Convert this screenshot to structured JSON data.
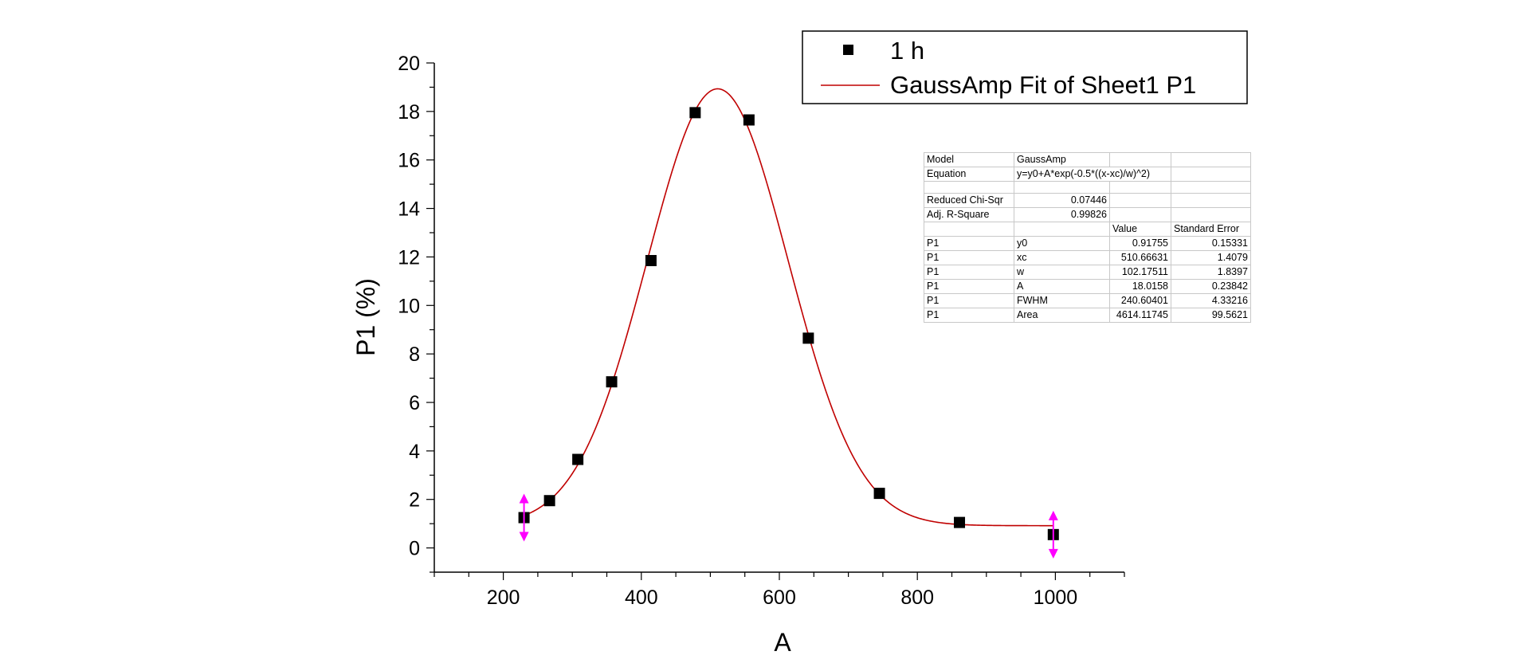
{
  "chart_data": {
    "type": "scatter",
    "xlabel": "A",
    "ylabel": "P1 (%)",
    "xlim": [
      100,
      1100
    ],
    "ylim": [
      -1,
      20
    ],
    "xticks": [
      200,
      400,
      600,
      800,
      1000
    ],
    "yticks": [
      0,
      2,
      4,
      6,
      8,
      10,
      12,
      14,
      16,
      18,
      20
    ],
    "grid": false,
    "legend_position": "top-right",
    "series": [
      {
        "name": "1 h",
        "kind": "scatter",
        "marker": "square",
        "color": "#000000",
        "x": [
          230,
          267,
          308,
          357,
          414,
          478,
          556,
          642,
          745,
          861,
          997
        ],
        "y": [
          1.25,
          1.95,
          3.65,
          6.85,
          11.85,
          17.95,
          17.65,
          8.65,
          2.25,
          1.05,
          0.55
        ]
      },
      {
        "name": "GaussAmp Fit of Sheet1 P1",
        "kind": "line",
        "color": "#c00000",
        "model": "gauss",
        "params": {
          "y0": 0.91755,
          "xc": 510.66631,
          "w": 102.17511,
          "A": 18.0158
        },
        "x_range": [
          230,
          997
        ]
      }
    ],
    "markers": [
      {
        "name": "range-start-handle",
        "x": 230,
        "y": 1.25,
        "color": "#ff00ff"
      },
      {
        "name": "range-end-handle",
        "x": 997,
        "y": 0.55,
        "color": "#ff00ff"
      }
    ]
  },
  "fit_table": {
    "model_label": "Model",
    "model_value": "GaussAmp",
    "equation_label": "Equation",
    "equation_value": "y=y0+A*exp(-0.5*((x-xc)/w)^2)",
    "chisq_label": "Reduced Chi-Sqr",
    "chisq_value": "0.07446",
    "r2_label": "Adj. R-Square",
    "r2_value": "0.99826",
    "value_header": "Value",
    "error_header": "Standard Error",
    "params": [
      {
        "dataset": "P1",
        "name": "y0",
        "value": "0.91755",
        "error": "0.15331"
      },
      {
        "dataset": "P1",
        "name": "xc",
        "value": "510.66631",
        "error": "1.4079"
      },
      {
        "dataset": "P1",
        "name": "w",
        "value": "102.17511",
        "error": "1.8397"
      },
      {
        "dataset": "P1",
        "name": "A",
        "value": "18.0158",
        "error": "0.23842"
      },
      {
        "dataset": "P1",
        "name": "FWHM",
        "value": "240.60401",
        "error": "4.33216"
      },
      {
        "dataset": "P1",
        "name": "Area",
        "value": "4614.11745",
        "error": "99.5621"
      }
    ]
  }
}
